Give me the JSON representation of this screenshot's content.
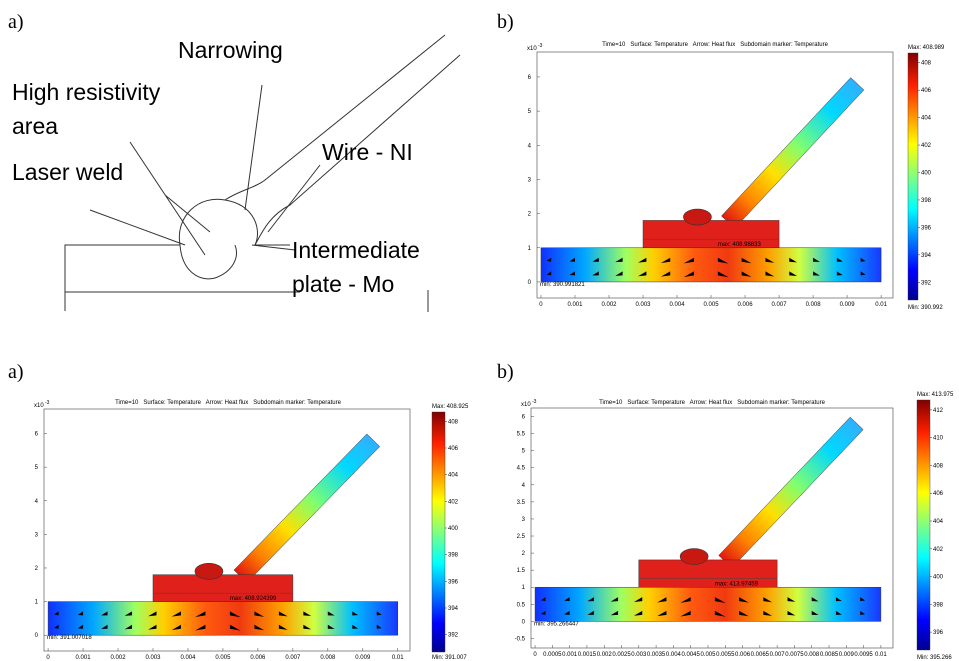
{
  "panels": [
    {
      "label": "a)",
      "annotations": [
        [
          "Narrowing"
        ],
        [
          "High resistivity",
          "area"
        ],
        [
          "Laser weld"
        ],
        [
          "Wire - NI"
        ],
        [
          "Intermediate",
          "plate - Mo"
        ]
      ]
    },
    {
      "label": "b)",
      "title": "Time=10   Surface: Temperature   Arrow: Heat flux   Subdomain marker: Temperature",
      "y_multiplier": "x10",
      "y_exponent": "-3",
      "yticks": [
        "0",
        "1",
        "2",
        "3",
        "4",
        "5",
        "6"
      ],
      "xticks": [
        "0",
        "0.001",
        "0.002",
        "0.003",
        "0.004",
        "0.005",
        "0.006",
        "0.007",
        "0.008",
        "0.009",
        "0.01"
      ],
      "colorbar_ticks": [
        "392",
        "394",
        "396",
        "398",
        "400",
        "402",
        "404",
        "406",
        "408"
      ],
      "max_label": "Max: 408.989",
      "min_label": "Min: 390.992",
      "min_value_label": "min: 390.991821",
      "max_value_label": "max: 408.98833"
    },
    {
      "label": "a)",
      "title": "Time=10   Surface: Temperature   Arrow: Heat flux   Subdomain marker: Temperature",
      "y_multiplier": "x10",
      "y_exponent": "-3",
      "yticks": [
        "0",
        "1",
        "2",
        "3",
        "4",
        "5",
        "6"
      ],
      "xticks": [
        "0",
        "0.001",
        "0.002",
        "0.003",
        "0.004",
        "0.005",
        "0.006",
        "0.007",
        "0.008",
        "0.009",
        "0.01"
      ],
      "colorbar_ticks": [
        "392",
        "394",
        "396",
        "398",
        "400",
        "402",
        "404",
        "406",
        "408"
      ],
      "max_label": "Max: 408.925",
      "min_label": "Min: 391.007",
      "min_value_label": "min: 391.007018",
      "max_value_label": "max: 408.924399"
    },
    {
      "label": "b)",
      "title": "Time=10   Surface: Temperature   Arrow: Heat flux   Subdomain marker: Temperature",
      "y_multiplier": "x10",
      "y_exponent": "-3",
      "yticks": [
        "-0.5",
        "0",
        "0.5",
        "1",
        "1.5",
        "2",
        "2.5",
        "3",
        "3.5",
        "4",
        "4.5",
        "5",
        "5.5",
        "6"
      ],
      "xticks": [
        "0",
        "0.0005",
        "0.001",
        "0.0015",
        "0.002",
        "0.0025",
        "0.003",
        "0.0035",
        "0.004",
        "0.0045",
        "0.005",
        "0.0055",
        "0.006",
        "0.0065",
        "0.007",
        "0.0075",
        "0.008",
        "0.0085",
        "0.009",
        "0.0095",
        "0.01"
      ],
      "colorbar_ticks": [
        "396",
        "398",
        "400",
        "402",
        "404",
        "406",
        "408",
        "410",
        "412"
      ],
      "max_label": "Max: 413.975",
      "min_label": "Min: 395.266",
      "min_value_label": "min: 395.266447",
      "max_value_label": "max: 413.97459"
    }
  ]
}
